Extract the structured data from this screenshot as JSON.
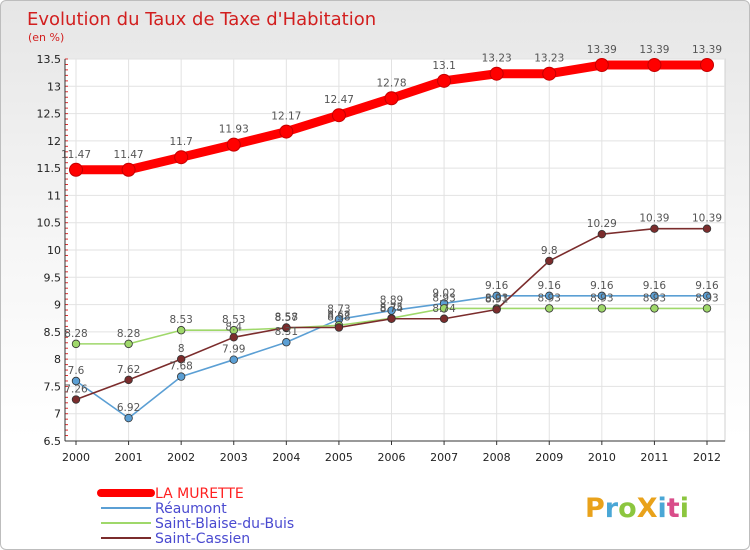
{
  "header": {
    "title": "Evolution du Taux de Taxe d'Habitation",
    "subtitle": "(en %)"
  },
  "logo_text": "ProXiti",
  "chart_data": {
    "type": "line",
    "title": "Evolution du Taux de Taxe d'Habitation",
    "ylabel": "(en %)",
    "xlabel": "",
    "x": [
      "2000",
      "2001",
      "2002",
      "2003",
      "2004",
      "2005",
      "2006",
      "2007",
      "2008",
      "2009",
      "2010",
      "2011",
      "2012"
    ],
    "ylim": [
      6.5,
      13.5
    ],
    "ytick_step": 0.5,
    "grid": true,
    "legend_position": "bottom-left",
    "series": [
      {
        "name": "LA MURETTE",
        "color": "#ff0000",
        "values": [
          11.47,
          11.47,
          11.7,
          11.93,
          12.17,
          12.47,
          12.78,
          13.1,
          13.23,
          13.23,
          13.39,
          13.39,
          13.39
        ]
      },
      {
        "name": "Réaumont",
        "color": "#5b9fd4",
        "values": [
          7.6,
          6.92,
          7.68,
          7.99,
          8.31,
          8.73,
          8.89,
          9.02,
          9.16,
          9.16,
          9.16,
          9.16,
          9.16
        ]
      },
      {
        "name": "Saint-Blaise-du-Buis",
        "color": "#9fd86a",
        "values": [
          8.28,
          8.28,
          8.53,
          8.53,
          8.57,
          8.62,
          8.75,
          8.93,
          8.93,
          8.93,
          8.93,
          8.93,
          8.93
        ]
      },
      {
        "name": "Saint-Cassien",
        "color": "#7b2c2c",
        "values": [
          7.26,
          7.62,
          8.0,
          8.4,
          8.58,
          8.58,
          8.74,
          8.74,
          8.91,
          9.8,
          10.29,
          10.39,
          10.39
        ]
      }
    ]
  }
}
